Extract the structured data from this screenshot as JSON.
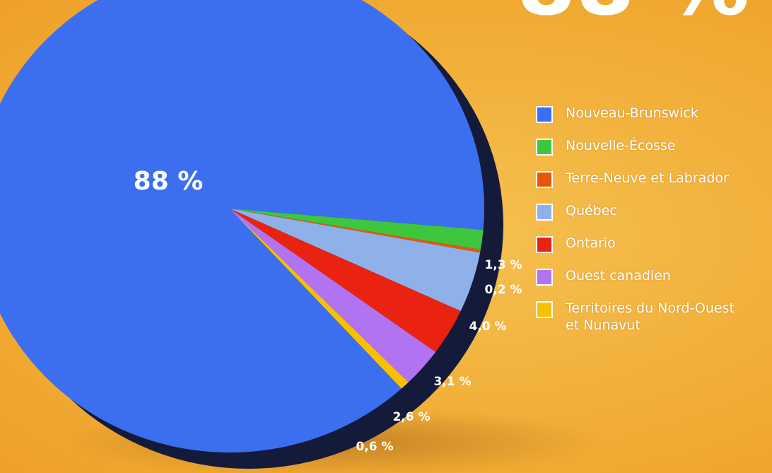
{
  "chart_data": {
    "type": "pie",
    "categories": [
      "Nouveau-Brunswick",
      "Nouvelle-Écosse",
      "Terre-Neuve et Labrador",
      "Québec",
      "Ontario",
      "Ouest canadien",
      "Territoires du Nord-Ouest et Nunavut"
    ],
    "values": [
      88,
      1.3,
      0.2,
      4.0,
      3.1,
      2.6,
      0.6
    ],
    "value_labels": [
      "88 %",
      "1,3 %",
      "0,2 %",
      "4,0 %",
      "3,1 %",
      "2,6 %",
      "0,6 %"
    ],
    "colors": [
      "#3b6ff0",
      "#3ec63e",
      "#e8560e",
      "#8fb1ea",
      "#ea2310",
      "#b273f2",
      "#f8c100"
    ],
    "legend": "right"
  }
}
